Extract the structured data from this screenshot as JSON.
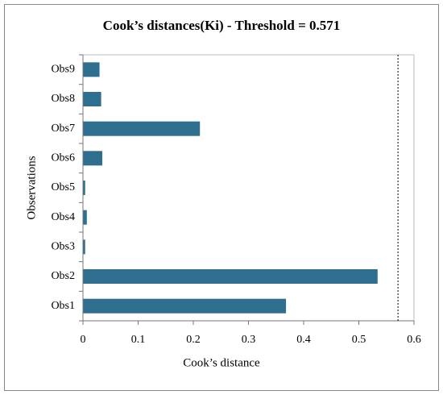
{
  "chart_data": {
    "type": "bar",
    "orientation": "horizontal",
    "title": "Cook’s distances(Ki) - Threshold = 0.571",
    "x_label": "Cook’s distance",
    "y_label": "Observations",
    "categories": [
      "Obs1",
      "Obs2",
      "Obs3",
      "Obs4",
      "Obs5",
      "Obs6",
      "Obs7",
      "Obs8",
      "Obs9"
    ],
    "values": [
      0.368,
      0.534,
      0.004,
      0.007,
      0.004,
      0.035,
      0.212,
      0.033,
      0.03
    ],
    "color": "#2e6e8e",
    "threshold": 0.571,
    "xlim": [
      0,
      0.6
    ],
    "xticks": [
      0,
      0.1,
      0.2,
      0.3,
      0.4,
      0.5,
      0.6
    ],
    "grid": false
  }
}
